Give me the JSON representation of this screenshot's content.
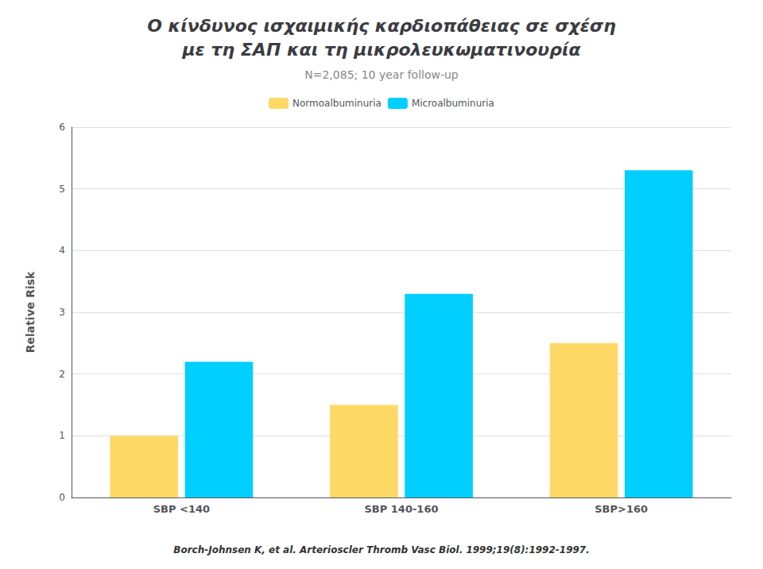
{
  "chart_data": {
    "type": "bar",
    "title": "Ο κίνδυνος ισχαιμικής καρδιοπάθειας σε σχέση\nμε τη ΣΑΠ και τη μικρολευκωματινουρία",
    "subtitle": "N=2,085; 10 year follow-up",
    "categories": [
      "SBP <140",
      "SBP 140-160",
      "SBP>160"
    ],
    "series": [
      {
        "name": "Normoalbuminuria",
        "color": "#FFD966",
        "values": [
          1.0,
          1.5,
          2.5
        ]
      },
      {
        "name": "Microalbuminuria",
        "color": "#00CFFF",
        "values": [
          2.2,
          3.3,
          5.3
        ]
      }
    ],
    "ylabel": "Relative Risk",
    "ylim": [
      0,
      6
    ],
    "yticks": [
      0,
      1,
      2,
      3,
      4,
      5,
      6
    ],
    "grid": true,
    "legend": "top",
    "annotations": [
      "Borch-Johnsen K, et al. Arterioscler Thromb Vasc Biol. 1999;19(8):1992-1997."
    ]
  }
}
